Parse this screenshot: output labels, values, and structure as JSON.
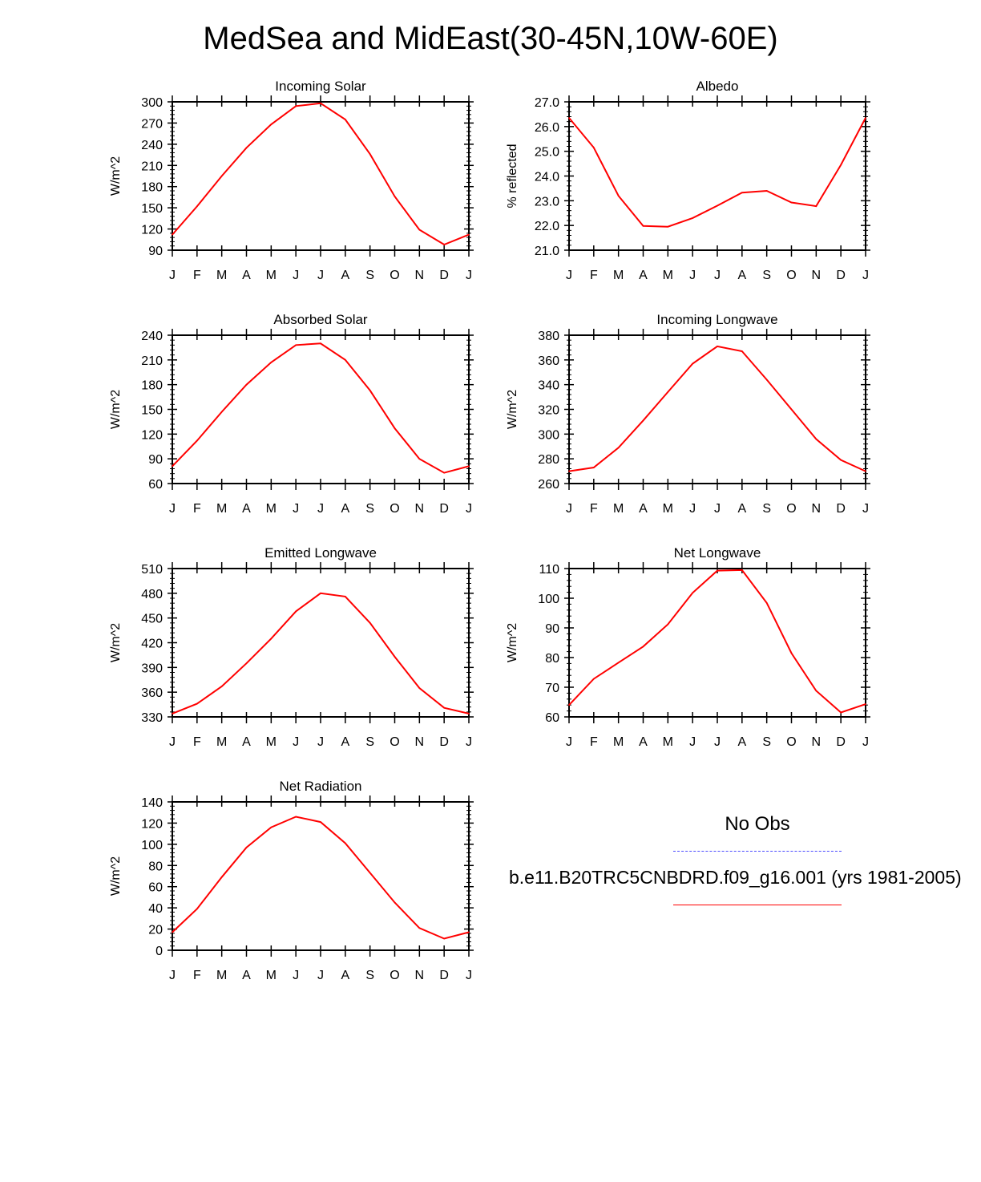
{
  "title": "MedSea and MidEast(30-45N,10W-60E)",
  "legend": {
    "obs_label": "No Obs",
    "obs_color": "#4b4bff",
    "model_label": "b.e11.B20TRC5CNBDRD.f09_g16.001 (yrs 1981-2005)",
    "model_color": "#ff0000"
  },
  "chart_data": [
    {
      "type": "line",
      "title": "Incoming Solar",
      "ylabel": "W/m^2",
      "x": [
        "J",
        "F",
        "M",
        "A",
        "M",
        "J",
        "J",
        "A",
        "S",
        "O",
        "N",
        "D",
        "J"
      ],
      "ylim": [
        90,
        300
      ],
      "yticks": [
        "90",
        "120",
        "150",
        "180",
        "210",
        "240",
        "270",
        "300"
      ],
      "series": [
        {
          "values": [
            112,
            152,
            195,
            235,
            268,
            294,
            298,
            275,
            226,
            166,
            119,
            98,
            112
          ]
        }
      ]
    },
    {
      "type": "line",
      "title": "Albedo",
      "ylabel": "% reflected",
      "x": [
        "J",
        "F",
        "M",
        "A",
        "M",
        "J",
        "J",
        "A",
        "S",
        "O",
        "N",
        "D",
        "J"
      ],
      "ylim": [
        21.0,
        27.0
      ],
      "yticks": [
        "21.0",
        "22.0",
        "23.0",
        "24.0",
        "25.0",
        "26.0",
        "27.0"
      ],
      "series": [
        {
          "values": [
            26.35,
            25.15,
            23.2,
            21.98,
            21.95,
            22.3,
            22.8,
            23.33,
            23.4,
            22.93,
            22.78,
            24.45,
            26.35
          ]
        }
      ]
    },
    {
      "type": "line",
      "title": "Absorbed Solar",
      "ylabel": "W/m^2",
      "x": [
        "J",
        "F",
        "M",
        "A",
        "M",
        "J",
        "J",
        "A",
        "S",
        "O",
        "N",
        "D",
        "J"
      ],
      "ylim": [
        60,
        240
      ],
      "yticks": [
        "60",
        "90",
        "120",
        "150",
        "180",
        "210",
        "240"
      ],
      "series": [
        {
          "values": [
            81,
            112,
            147,
            180,
            207,
            228,
            230,
            210,
            173,
            127,
            90,
            73,
            81
          ]
        }
      ]
    },
    {
      "type": "line",
      "title": "Incoming Longwave",
      "ylabel": "W/m^2",
      "x": [
        "J",
        "F",
        "M",
        "A",
        "M",
        "J",
        "J",
        "A",
        "S",
        "O",
        "N",
        "D",
        "J"
      ],
      "ylim": [
        260,
        380
      ],
      "yticks": [
        "260",
        "280",
        "300",
        "320",
        "340",
        "360",
        "380"
      ],
      "series": [
        {
          "values": [
            270,
            273,
            289,
            311,
            334,
            357,
            371,
            367,
            344,
            320,
            296,
            279,
            270
          ]
        }
      ]
    },
    {
      "type": "line",
      "title": "Emitted Longwave",
      "ylabel": "W/m^2",
      "x": [
        "J",
        "F",
        "M",
        "A",
        "M",
        "J",
        "J",
        "A",
        "S",
        "O",
        "N",
        "D",
        "J"
      ],
      "ylim": [
        330,
        510
      ],
      "yticks": [
        "330",
        "360",
        "390",
        "420",
        "450",
        "480",
        "510"
      ],
      "series": [
        {
          "values": [
            334,
            346,
            367,
            395,
            425,
            458,
            480,
            476,
            444,
            403,
            365,
            341,
            334
          ]
        }
      ]
    },
    {
      "type": "line",
      "title": "Net Longwave",
      "ylabel": "W/m^2",
      "x": [
        "J",
        "F",
        "M",
        "A",
        "M",
        "J",
        "J",
        "A",
        "S",
        "O",
        "N",
        "D",
        "J"
      ],
      "ylim": [
        60,
        110
      ],
      "yticks": [
        "60",
        "70",
        "80",
        "90",
        "100",
        "110"
      ],
      "series": [
        {
          "values": [
            64,
            72.8,
            78.3,
            83.7,
            91.2,
            101.8,
            109.3,
            109.5,
            98.4,
            81.5,
            68.8,
            61.5,
            64.3
          ]
        }
      ]
    },
    {
      "type": "line",
      "title": "Net Radiation",
      "ylabel": "W/m^2",
      "x": [
        "J",
        "F",
        "M",
        "A",
        "M",
        "J",
        "J",
        "A",
        "S",
        "O",
        "N",
        "D",
        "J"
      ],
      "ylim": [
        0,
        140
      ],
      "yticks": [
        "0",
        "20",
        "40",
        "60",
        "80",
        "100",
        "120",
        "140"
      ],
      "series": [
        {
          "values": [
            17,
            39,
            69,
            97,
            116,
            126,
            121,
            101,
            73,
            45,
            21,
            11,
            17
          ]
        }
      ]
    }
  ]
}
